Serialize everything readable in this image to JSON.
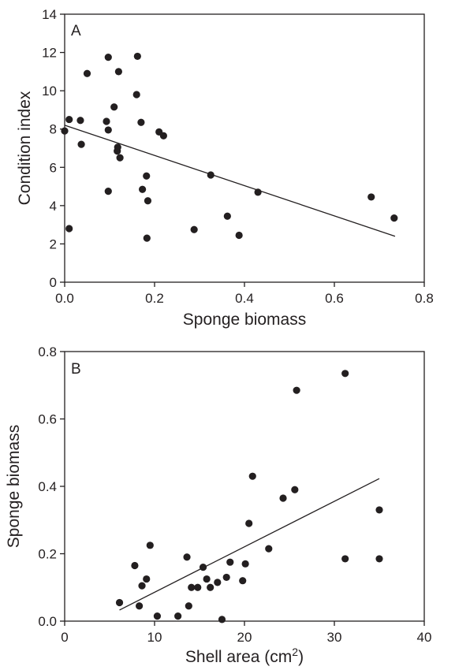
{
  "chart_data": [
    {
      "panel_label": "A",
      "type": "scatter",
      "title": "",
      "xlabel": "Sponge biomass",
      "ylabel": "Condition index",
      "xlim": [
        0,
        0.8
      ],
      "ylim": [
        0,
        14
      ],
      "xticks": [
        "0.0",
        "0.2",
        "0.4",
        "0.6",
        "0.8"
      ],
      "yticks": [
        "0",
        "2",
        "4",
        "6",
        "8",
        "10",
        "12",
        "14"
      ],
      "grid": false,
      "legend": "none",
      "series": [
        {
          "points": [
            [
              0.0,
              7.9
            ],
            [
              0.01,
              8.5
            ],
            [
              0.01,
              2.8
            ],
            [
              0.035,
              8.45
            ],
            [
              0.037,
              7.2
            ],
            [
              0.05,
              10.9
            ],
            [
              0.093,
              8.4
            ],
            [
              0.097,
              11.75
            ],
            [
              0.097,
              7.95
            ],
            [
              0.097,
              4.75
            ],
            [
              0.11,
              9.15
            ],
            [
              0.117,
              6.85
            ],
            [
              0.118,
              7.05
            ],
            [
              0.12,
              11.0
            ],
            [
              0.123,
              6.5
            ],
            [
              0.16,
              9.8
            ],
            [
              0.162,
              11.8
            ],
            [
              0.17,
              8.35
            ],
            [
              0.173,
              4.85
            ],
            [
              0.182,
              5.55
            ],
            [
              0.183,
              2.3
            ],
            [
              0.185,
              4.25
            ],
            [
              0.21,
              7.85
            ],
            [
              0.22,
              7.65
            ],
            [
              0.288,
              2.75
            ],
            [
              0.325,
              5.6
            ],
            [
              0.362,
              3.45
            ],
            [
              0.388,
              2.45
            ],
            [
              0.43,
              4.7
            ],
            [
              0.682,
              4.45
            ],
            [
              0.733,
              3.35
            ]
          ]
        }
      ],
      "fit_line": {
        "x": [
          0.0,
          0.735
        ],
        "y": [
          8.2,
          2.4
        ]
      }
    },
    {
      "panel_label": "B",
      "type": "scatter",
      "title": "",
      "xlabel_main": "Shell area (cm",
      "xlabel_sup": "2",
      "xlabel_end": ")",
      "ylabel": "Sponge biomass",
      "xlim": [
        0,
        40
      ],
      "ylim": [
        0,
        0.8
      ],
      "xticks": [
        "0",
        "10",
        "20",
        "30",
        "40"
      ],
      "yticks": [
        "0.0",
        "0.2",
        "0.4",
        "0.6",
        "0.8"
      ],
      "grid": false,
      "legend": "none",
      "series": [
        {
          "points": [
            [
              6.1,
              0.055
            ],
            [
              7.8,
              0.165
            ],
            [
              8.3,
              0.045
            ],
            [
              8.6,
              0.105
            ],
            [
              9.1,
              0.125
            ],
            [
              9.5,
              0.225
            ],
            [
              10.3,
              0.015
            ],
            [
              12.6,
              0.015
            ],
            [
              13.6,
              0.19
            ],
            [
              13.8,
              0.045
            ],
            [
              14.1,
              0.1
            ],
            [
              14.8,
              0.1
            ],
            [
              15.4,
              0.16
            ],
            [
              15.8,
              0.125
            ],
            [
              16.2,
              0.1
            ],
            [
              17.0,
              0.115
            ],
            [
              17.5,
              0.005
            ],
            [
              18.0,
              0.13
            ],
            [
              18.4,
              0.175
            ],
            [
              19.8,
              0.12
            ],
            [
              20.1,
              0.17
            ],
            [
              20.5,
              0.29
            ],
            [
              20.9,
              0.43
            ],
            [
              22.7,
              0.215
            ],
            [
              24.3,
              0.365
            ],
            [
              25.6,
              0.39
            ],
            [
              25.8,
              0.685
            ],
            [
              31.2,
              0.735
            ],
            [
              31.2,
              0.185
            ],
            [
              35.0,
              0.33
            ],
            [
              35.0,
              0.185
            ]
          ]
        }
      ],
      "fit_line": {
        "x": [
          6.1,
          35.0
        ],
        "y": [
          0.033,
          0.423
        ]
      }
    }
  ]
}
